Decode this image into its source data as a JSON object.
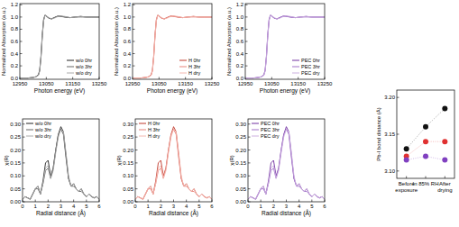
{
  "chart_data": [
    {
      "type": "line",
      "x_label": "Photon energy (eV)",
      "y_label": "Normalized Absorption (a.u.)",
      "legend": "lower right",
      "x": [
        12950,
        12980,
        13000,
        13010,
        13020,
        13025,
        13030,
        13035,
        13040,
        13045,
        13050,
        13060,
        13070,
        13080,
        13090,
        13100,
        13120,
        13140,
        13160,
        13180,
        13200,
        13220,
        13250
      ],
      "series": [
        {
          "name": "w/o 0hr",
          "color": "#222222",
          "values": [
            0,
            0,
            0.01,
            0.02,
            0.05,
            0.12,
            0.35,
            0.7,
            0.95,
            1.03,
            1.02,
            0.98,
            0.97,
            0.99,
            1.01,
            1.02,
            1.0,
            0.99,
            1.0,
            1.01,
            1.0,
            1.0,
            1.0
          ]
        },
        {
          "name": "w/o 3hr",
          "color": "#666666",
          "values": [
            0,
            0,
            0.01,
            0.02,
            0.05,
            0.13,
            0.37,
            0.72,
            0.96,
            1.03,
            1.01,
            0.98,
            0.97,
            0.99,
            1.01,
            1.01,
            1.0,
            0.99,
            1.0,
            1.0,
            1.0,
            1.0,
            1.0
          ]
        },
        {
          "name": "w/o dry",
          "color": "#aaaaaa",
          "values": [
            0,
            0,
            0.01,
            0.02,
            0.04,
            0.11,
            0.33,
            0.68,
            0.94,
            1.02,
            1.02,
            0.99,
            0.97,
            0.98,
            1.0,
            1.02,
            1.01,
            0.99,
            1.0,
            1.01,
            1.0,
            1.0,
            1.0
          ]
        }
      ],
      "xlim": [
        12950,
        13250
      ],
      "xticks": [
        12950,
        13050,
        13150,
        13250
      ],
      "ylim": [
        -0.02,
        1.22
      ],
      "yticks": [
        {
          "value": 0,
          "label": "0.0"
        },
        0.2,
        0.4,
        0.6,
        0.8,
        {
          "value": 1,
          "label": "1.0"
        },
        1.2
      ]
    },
    {
      "type": "line",
      "x_label": "Photon energy (eV)",
      "y_label": "Normalized Absorption (a.u.)",
      "legend": "lower right",
      "x": [
        12950,
        12980,
        13000,
        13010,
        13020,
        13025,
        13030,
        13035,
        13040,
        13045,
        13050,
        13060,
        13070,
        13080,
        13090,
        13100,
        13120,
        13140,
        13160,
        13180,
        13200,
        13220,
        13250
      ],
      "series": [
        {
          "name": "H 0hr",
          "color": "#c0392b",
          "values": [
            0,
            0,
            0.01,
            0.02,
            0.05,
            0.12,
            0.35,
            0.7,
            0.95,
            1.03,
            1.02,
            0.98,
            0.97,
            0.99,
            1.01,
            1.02,
            1.0,
            0.99,
            1.0,
            1.01,
            1.0,
            1.0,
            1.0
          ]
        },
        {
          "name": "H 3hr",
          "color": "#e8837a",
          "values": [
            0,
            0,
            0.01,
            0.02,
            0.05,
            0.13,
            0.37,
            0.72,
            0.96,
            1.03,
            1.01,
            0.98,
            0.97,
            0.99,
            1.01,
            1.01,
            1.0,
            0.99,
            1.0,
            1.0,
            1.0,
            1.0,
            1.0
          ]
        },
        {
          "name": "H dry",
          "color": "#f4b8b0",
          "values": [
            0,
            0,
            0.01,
            0.02,
            0.04,
            0.11,
            0.33,
            0.68,
            0.94,
            1.02,
            1.02,
            0.99,
            0.97,
            0.98,
            1.0,
            1.02,
            1.01,
            0.99,
            1.0,
            1.01,
            1.0,
            1.0,
            1.0
          ]
        }
      ],
      "xlim": [
        12950,
        13250
      ],
      "xticks": [
        12950,
        13050,
        13150,
        13250
      ],
      "ylim": [
        -0.02,
        1.22
      ],
      "yticks": [
        {
          "value": 0,
          "label": "0.0"
        },
        0.2,
        0.4,
        0.6,
        0.8,
        {
          "value": 1,
          "label": "1.0"
        },
        1.2
      ]
    },
    {
      "type": "line",
      "x_label": "Photon energy (eV)",
      "y_label": "Normalized Absorption (a.u.)",
      "legend": "lower right",
      "x": [
        12950,
        12980,
        13000,
        13010,
        13020,
        13025,
        13030,
        13035,
        13040,
        13045,
        13050,
        13060,
        13070,
        13080,
        13090,
        13100,
        13120,
        13140,
        13160,
        13180,
        13200,
        13220,
        13250
      ],
      "series": [
        {
          "name": "PEC 0hr",
          "color": "#7030a0",
          "values": [
            0,
            0,
            0.01,
            0.02,
            0.05,
            0.12,
            0.35,
            0.7,
            0.95,
            1.03,
            1.02,
            0.98,
            0.97,
            0.99,
            1.01,
            1.02,
            1.0,
            0.99,
            1.0,
            1.01,
            1.0,
            1.0,
            1.0
          ]
        },
        {
          "name": "PEC 3hr",
          "color": "#a070c8",
          "values": [
            0,
            0,
            0.01,
            0.02,
            0.05,
            0.13,
            0.37,
            0.72,
            0.96,
            1.03,
            1.01,
            0.98,
            0.97,
            0.99,
            1.01,
            1.01,
            1.0,
            0.99,
            1.0,
            1.0,
            1.0,
            1.0,
            1.0
          ]
        },
        {
          "name": "PEC dry",
          "color": "#cdb0e0",
          "values": [
            0,
            0,
            0.01,
            0.02,
            0.04,
            0.11,
            0.33,
            0.68,
            0.94,
            1.02,
            1.02,
            0.99,
            0.97,
            0.98,
            1.0,
            1.02,
            1.01,
            0.99,
            1.0,
            1.01,
            1.0,
            1.0,
            1.0
          ]
        }
      ],
      "xlim": [
        12950,
        13250
      ],
      "xticks": [
        12950,
        13050,
        13150,
        13250
      ],
      "ylim": [
        -0.02,
        1.22
      ],
      "yticks": [
        {
          "value": 0,
          "label": "0.0"
        },
        0.2,
        0.4,
        0.6,
        0.8,
        {
          "value": 1,
          "label": "1.0"
        },
        1.2
      ]
    },
    {
      "type": "line",
      "x_label": "Radial distance (Å)",
      "y_label": "χ(R)",
      "legend": "upper left",
      "x": [
        0,
        0.2,
        0.4,
        0.6,
        0.8,
        1,
        1.2,
        1.4,
        1.6,
        1.8,
        2,
        2.2,
        2.4,
        2.6,
        2.8,
        3,
        3.2,
        3.4,
        3.6,
        3.8,
        4,
        4.2,
        4.4,
        4.6,
        4.8,
        5,
        5.2,
        5.4,
        5.6,
        5.8,
        6
      ],
      "series": [
        {
          "name": "w/o 0hr",
          "color": "#222222",
          "values": [
            0.01,
            0.02,
            0.015,
            0.01,
            0.03,
            0.05,
            0.06,
            0.03,
            0.08,
            0.15,
            0.16,
            0.1,
            0.13,
            0.2,
            0.26,
            0.29,
            0.27,
            0.18,
            0.09,
            0.06,
            0.07,
            0.05,
            0.04,
            0.05,
            0.03,
            0.02,
            0.03,
            0.02,
            0.015,
            0.02,
            0.01
          ]
        },
        {
          "name": "w/o 3hr",
          "color": "#666666",
          "values": [
            0.01,
            0.02,
            0.015,
            0.01,
            0.03,
            0.05,
            0.05,
            0.03,
            0.07,
            0.12,
            0.13,
            0.09,
            0.13,
            0.2,
            0.26,
            0.28,
            0.26,
            0.17,
            0.09,
            0.06,
            0.06,
            0.05,
            0.04,
            0.04,
            0.03,
            0.02,
            0.03,
            0.02,
            0.015,
            0.02,
            0.01
          ]
        },
        {
          "name": "w/o dry",
          "color": "#aaaaaa",
          "values": [
            0.01,
            0.02,
            0.015,
            0.01,
            0.03,
            0.05,
            0.06,
            0.03,
            0.07,
            0.13,
            0.14,
            0.09,
            0.12,
            0.19,
            0.25,
            0.28,
            0.27,
            0.19,
            0.1,
            0.06,
            0.07,
            0.05,
            0.04,
            0.05,
            0.03,
            0.02,
            0.03,
            0.02,
            0.015,
            0.02,
            0.01
          ]
        }
      ],
      "xlim": [
        0,
        6
      ],
      "xticks": [
        0,
        1,
        2,
        3,
        4,
        5,
        6
      ],
      "ylim": [
        0,
        0.32
      ],
      "yticks": [
        {
          "value": 0,
          "label": "0.00"
        },
        {
          "value": 0.05,
          "label": "0.05"
        },
        {
          "value": 0.1,
          "label": "0.10"
        },
        {
          "value": 0.15,
          "label": "0.15"
        },
        {
          "value": 0.2,
          "label": "0.20"
        },
        {
          "value": 0.25,
          "label": "0.25"
        },
        {
          "value": 0.3,
          "label": "0.30"
        }
      ]
    },
    {
      "type": "line",
      "x_label": "Radial distance (Å)",
      "y_label": "χ(R)",
      "legend": "upper left",
      "x": [
        0,
        0.2,
        0.4,
        0.6,
        0.8,
        1,
        1.2,
        1.4,
        1.6,
        1.8,
        2,
        2.2,
        2.4,
        2.6,
        2.8,
        3,
        3.2,
        3.4,
        3.6,
        3.8,
        4,
        4.2,
        4.4,
        4.6,
        4.8,
        5,
        5.2,
        5.4,
        5.6,
        5.8,
        6
      ],
      "series": [
        {
          "name": "H 0hr",
          "color": "#c0392b",
          "values": [
            0.01,
            0.02,
            0.015,
            0.01,
            0.03,
            0.05,
            0.06,
            0.03,
            0.08,
            0.15,
            0.16,
            0.1,
            0.13,
            0.2,
            0.26,
            0.29,
            0.27,
            0.18,
            0.09,
            0.06,
            0.07,
            0.05,
            0.04,
            0.05,
            0.03,
            0.02,
            0.03,
            0.02,
            0.015,
            0.02,
            0.01
          ]
        },
        {
          "name": "H 3hr",
          "color": "#e8837a",
          "values": [
            0.01,
            0.02,
            0.015,
            0.01,
            0.03,
            0.05,
            0.05,
            0.03,
            0.07,
            0.12,
            0.13,
            0.09,
            0.13,
            0.2,
            0.26,
            0.28,
            0.26,
            0.17,
            0.09,
            0.06,
            0.06,
            0.05,
            0.04,
            0.04,
            0.03,
            0.02,
            0.03,
            0.02,
            0.015,
            0.02,
            0.01
          ]
        },
        {
          "name": "H dry",
          "color": "#f4b8b0",
          "values": [
            0.01,
            0.02,
            0.015,
            0.01,
            0.03,
            0.05,
            0.06,
            0.03,
            0.07,
            0.13,
            0.14,
            0.09,
            0.12,
            0.19,
            0.25,
            0.28,
            0.27,
            0.19,
            0.1,
            0.06,
            0.07,
            0.05,
            0.04,
            0.05,
            0.03,
            0.02,
            0.03,
            0.02,
            0.015,
            0.02,
            0.01
          ]
        }
      ],
      "xlim": [
        0,
        6
      ],
      "xticks": [
        0,
        1,
        2,
        3,
        4,
        5,
        6
      ],
      "ylim": [
        0,
        0.32
      ],
      "yticks": [
        {
          "value": 0,
          "label": "0.00"
        },
        {
          "value": 0.05,
          "label": "0.05"
        },
        {
          "value": 0.1,
          "label": "0.10"
        },
        {
          "value": 0.15,
          "label": "0.15"
        },
        {
          "value": 0.2,
          "label": "0.20"
        },
        {
          "value": 0.25,
          "label": "0.25"
        },
        {
          "value": 0.3,
          "label": "0.30"
        }
      ]
    },
    {
      "type": "line",
      "x_label": "Radial distance (Å)",
      "y_label": "χ(R)",
      "legend": "upper left",
      "x": [
        0,
        0.2,
        0.4,
        0.6,
        0.8,
        1,
        1.2,
        1.4,
        1.6,
        1.8,
        2,
        2.2,
        2.4,
        2.6,
        2.8,
        3,
        3.2,
        3.4,
        3.6,
        3.8,
        4,
        4.2,
        4.4,
        4.6,
        4.8,
        5,
        5.2,
        5.4,
        5.6,
        5.8,
        6
      ],
      "series": [
        {
          "name": "PEC 0hr",
          "color": "#7030a0",
          "values": [
            0.01,
            0.02,
            0.015,
            0.01,
            0.03,
            0.05,
            0.06,
            0.03,
            0.08,
            0.15,
            0.16,
            0.1,
            0.13,
            0.2,
            0.26,
            0.29,
            0.27,
            0.18,
            0.09,
            0.06,
            0.07,
            0.05,
            0.04,
            0.05,
            0.03,
            0.02,
            0.03,
            0.02,
            0.015,
            0.02,
            0.01
          ]
        },
        {
          "name": "PEC 3hr",
          "color": "#a070c8",
          "values": [
            0.01,
            0.02,
            0.015,
            0.01,
            0.03,
            0.05,
            0.05,
            0.03,
            0.07,
            0.12,
            0.13,
            0.09,
            0.13,
            0.2,
            0.26,
            0.28,
            0.26,
            0.17,
            0.09,
            0.06,
            0.06,
            0.05,
            0.04,
            0.04,
            0.03,
            0.02,
            0.03,
            0.02,
            0.015,
            0.02,
            0.01
          ]
        },
        {
          "name": "PEC dry",
          "color": "#cdb0e0",
          "values": [
            0.01,
            0.02,
            0.015,
            0.01,
            0.03,
            0.05,
            0.06,
            0.03,
            0.07,
            0.13,
            0.14,
            0.09,
            0.12,
            0.19,
            0.25,
            0.28,
            0.27,
            0.19,
            0.1,
            0.06,
            0.07,
            0.05,
            0.04,
            0.05,
            0.03,
            0.02,
            0.03,
            0.02,
            0.015,
            0.02,
            0.01
          ]
        }
      ],
      "xlim": [
        0,
        6
      ],
      "xticks": [
        0,
        1,
        2,
        3,
        4,
        5,
        6
      ],
      "ylim": [
        0,
        0.32
      ],
      "yticks": [
        {
          "value": 0,
          "label": "0.00"
        },
        {
          "value": 0.05,
          "label": "0.05"
        },
        {
          "value": 0.1,
          "label": "0.10"
        },
        {
          "value": 0.15,
          "label": "0.15"
        },
        {
          "value": 0.2,
          "label": "0.20"
        },
        {
          "value": 0.25,
          "label": "0.25"
        },
        {
          "value": 0.3,
          "label": "0.30"
        }
      ]
    },
    {
      "type": "scatter",
      "y_label": "Pb-I bond distance (Å)",
      "categories": [
        "Before exposure",
        "In 85% RH",
        "After drying"
      ],
      "series": [
        {
          "color": "#111111",
          "marker": "circle",
          "line_style": "dotted",
          "values": [
            3.13,
            3.16,
            3.185
          ]
        },
        {
          "color": "#e03030",
          "marker": "circle",
          "line_style": "dotted",
          "values": [
            3.12,
            3.14,
            3.14
          ]
        },
        {
          "color": "#8040c0",
          "marker": "circle",
          "line_style": "dotted",
          "values": [
            3.115,
            3.12,
            3.115
          ]
        }
      ],
      "ylim": [
        3.09,
        3.21
      ],
      "yticks": [
        {
          "value": 3.1,
          "label": "3.10"
        },
        3.15,
        {
          "value": 3.2,
          "label": "3.20"
        }
      ]
    }
  ]
}
